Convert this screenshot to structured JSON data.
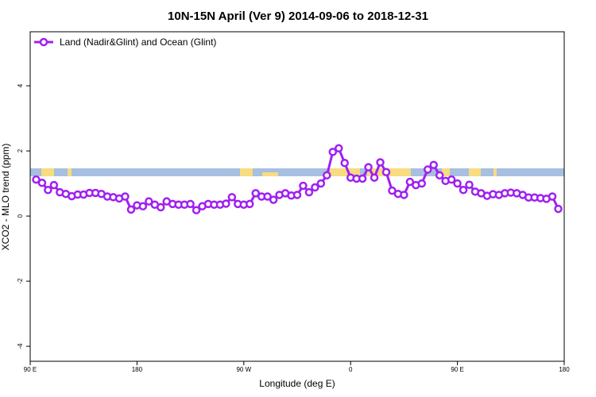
{
  "chart_data": {
    "type": "line",
    "title": "10N-15N April (Ver 9)   2014-09-06 to 2018-12-31",
    "xlabel": "Longitude (deg E)",
    "ylabel": "XCO2 - MLO trend (ppm)",
    "xlim": [
      90,
      540
    ],
    "xticks": [
      {
        "value": 90,
        "label": "90 E"
      },
      180,
      {
        "value": 270,
        "label": "90 W"
      },
      {
        "value": 360,
        "label": "0"
      },
      {
        "value": 450,
        "label": "90 E"
      },
      {
        "value": 540,
        "label": "180"
      }
    ],
    "ylim": [
      -4.46,
      5.66
    ],
    "yticks": [
      -4,
      -2,
      0,
      2,
      4
    ],
    "legend": "top-left",
    "x": [
      95,
      100,
      105,
      110,
      115,
      120,
      125,
      130,
      135,
      140,
      145,
      150,
      155,
      160,
      165,
      170,
      175,
      180,
      185,
      190,
      195,
      200,
      205,
      210,
      215,
      220,
      225,
      230,
      235,
      240,
      245,
      250,
      255,
      260,
      265,
      270,
      275,
      280,
      285,
      290,
      295,
      300,
      305,
      310,
      315,
      320,
      325,
      330,
      335,
      340,
      345,
      350,
      355,
      360,
      365,
      370,
      375,
      380,
      385,
      390,
      395,
      400,
      405,
      410,
      415,
      420,
      425,
      430,
      435,
      440,
      445,
      450,
      455,
      460,
      465,
      470,
      475,
      480,
      485,
      490,
      495,
      500,
      505,
      510,
      515,
      520,
      525,
      530,
      535
    ],
    "series": [
      {
        "name": "Land (Nadir&Glint) and Ocean (Glint)",
        "color": "#a020f0",
        "values": [
          1.12,
          1.02,
          0.8,
          0.95,
          0.73,
          0.68,
          0.61,
          0.66,
          0.66,
          0.71,
          0.71,
          0.68,
          0.6,
          0.58,
          0.54,
          0.6,
          0.2,
          0.33,
          0.3,
          0.45,
          0.35,
          0.27,
          0.45,
          0.37,
          0.35,
          0.35,
          0.37,
          0.18,
          0.3,
          0.37,
          0.35,
          0.35,
          0.38,
          0.58,
          0.37,
          0.35,
          0.37,
          0.7,
          0.6,
          0.6,
          0.5,
          0.65,
          0.7,
          0.63,
          0.65,
          0.93,
          0.73,
          0.88,
          1.0,
          1.25,
          1.97,
          2.08,
          1.63,
          1.18,
          1.15,
          1.15,
          1.5,
          1.18,
          1.65,
          1.35,
          0.78,
          0.68,
          0.65,
          1.05,
          0.95,
          1.0,
          1.43,
          1.57,
          1.25,
          1.08,
          1.12,
          1.0,
          0.8,
          0.96,
          0.75,
          0.7,
          0.62,
          0.67,
          0.65,
          0.7,
          0.72,
          0.7,
          0.65,
          0.57,
          0.57,
          0.55,
          0.53,
          0.6,
          0.22
        ]
      }
    ]
  }
}
